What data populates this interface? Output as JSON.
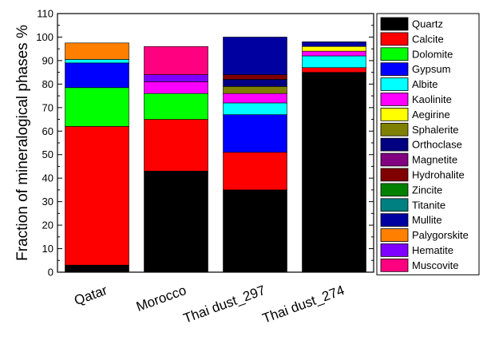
{
  "chart_data": {
    "type": "bar",
    "stacked": true,
    "title": "",
    "xlabel": "",
    "ylabel": "Fraction of mineralogical phases %",
    "ylim": [
      0,
      110
    ],
    "yticks": [
      0,
      10,
      20,
      30,
      40,
      50,
      60,
      70,
      80,
      90,
      100,
      110
    ],
    "grid": false,
    "legend_position": "right",
    "categories": [
      "Qatar",
      "Morocco",
      "Thai dust_297",
      "Thai dust_274"
    ],
    "series": [
      {
        "name": "Quartz",
        "color": "#000000",
        "values": [
          3,
          43,
          35,
          85
        ]
      },
      {
        "name": "Calcite",
        "color": "#ff0000",
        "values": [
          59,
          22,
          16,
          2
        ]
      },
      {
        "name": "Dolomite",
        "color": "#00ff00",
        "values": [
          16.5,
          11,
          0,
          0
        ]
      },
      {
        "name": "Gypsum",
        "color": "#0000ff",
        "values": [
          10.5,
          0,
          16,
          0
        ]
      },
      {
        "name": "Albite",
        "color": "#00ffff",
        "values": [
          1.5,
          0,
          5,
          5
        ]
      },
      {
        "name": "Kaolinite",
        "color": "#ff00ff",
        "values": [
          0,
          5,
          4,
          2
        ]
      },
      {
        "name": "Aegirine",
        "color": "#ffff00",
        "values": [
          0,
          0,
          0,
          2
        ]
      },
      {
        "name": "Sphalerite",
        "color": "#808000",
        "values": [
          0,
          0,
          3,
          0
        ]
      },
      {
        "name": "Orthoclase",
        "color": "#000080",
        "values": [
          0,
          0,
          3,
          0
        ]
      },
      {
        "name": "Magnetite",
        "color": "#800080",
        "values": [
          0,
          0,
          0,
          0
        ]
      },
      {
        "name": "Hydrohalite",
        "color": "#800000",
        "values": [
          0,
          0,
          2,
          0
        ]
      },
      {
        "name": "Zincite",
        "color": "#008000",
        "values": [
          0,
          0,
          0,
          0
        ]
      },
      {
        "name": "Titanite",
        "color": "#008080",
        "values": [
          0,
          0,
          0,
          0
        ]
      },
      {
        "name": "Mullite",
        "color": "#0000a0",
        "values": [
          0,
          0,
          16,
          2
        ]
      },
      {
        "name": "Palygorskite",
        "color": "#ff8000",
        "values": [
          7,
          0,
          0,
          0
        ]
      },
      {
        "name": "Hematite",
        "color": "#8000ff",
        "values": [
          0,
          3,
          0,
          0
        ]
      },
      {
        "name": "Muscovite",
        "color": "#ff0080",
        "values": [
          0,
          12,
          0,
          0
        ]
      }
    ]
  }
}
